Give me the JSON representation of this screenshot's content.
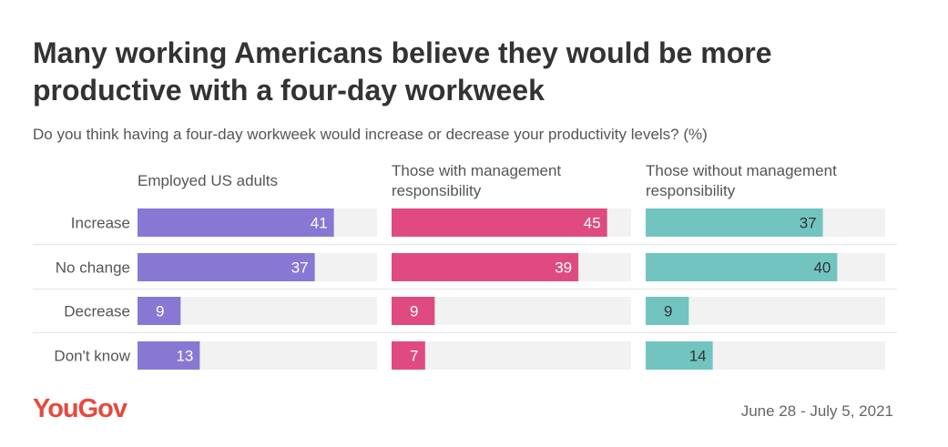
{
  "title": "Many working Americans believe they would be more productive with a four-day workweek",
  "subtitle": "Do you think having a four-day workweek would increase or decrease your productivity levels? (%)",
  "brand": "YouGov",
  "date_range": "June 28 - July 5, 2021",
  "chart_data": {
    "type": "bar",
    "orientation": "horizontal",
    "categories": [
      "Increase",
      "No change",
      "Decrease",
      "Don't know"
    ],
    "xlim": [
      0,
      50
    ],
    "series": [
      {
        "name": "Employed US adults",
        "name_lines": [
          "Employed US adults"
        ],
        "color": "#8878d4",
        "values": [
          41,
          37,
          9,
          13
        ]
      },
      {
        "name": "Those with management responsibility",
        "name_lines": [
          "Those with management",
          "responsibility"
        ],
        "color": "#df4b80",
        "values": [
          45,
          39,
          9,
          7
        ]
      },
      {
        "name": "Those without management responsibility",
        "name_lines": [
          "Those without management",
          "responsibility"
        ],
        "color": "#72c4c1",
        "values": [
          37,
          40,
          9,
          14
        ]
      }
    ],
    "track_color": "#f2f2f2"
  }
}
